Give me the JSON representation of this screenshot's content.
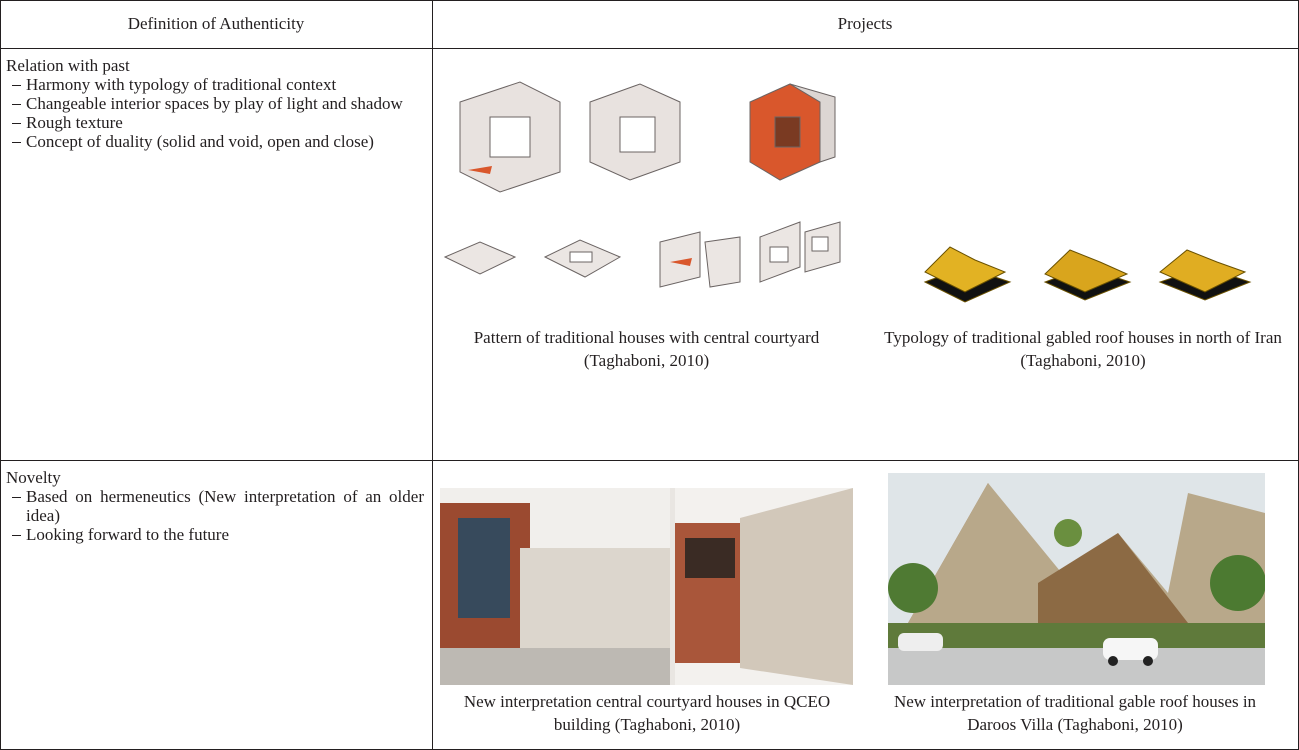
{
  "table": {
    "header": [
      "Definition of Authenticity",
      "Projects"
    ],
    "rows": [
      {
        "definition": {
          "title": "Relation with past",
          "items": [
            "Harmony with typology of traditional context",
            "Changeable interior spaces by play of light and shadow",
            "Rough texture",
            "Concept of duality (solid and void, open and close)"
          ]
        },
        "projects": [
          {
            "caption": "Pattern of traditional houses with central courtyard (Taghaboni, 2010)"
          },
          {
            "caption": "Typology of traditional gabled roof houses in north of Iran (Taghaboni, 2010)"
          }
        ]
      },
      {
        "definition": {
          "title": "Novelty",
          "items": [
            "Based on hermeneutics (New interpretation of an older idea)",
            "Looking forward to the future"
          ]
        },
        "projects": [
          {
            "caption": "New interpretation central courtyard houses in QCEO building (Taghaboni, 2010)"
          },
          {
            "caption": "New interpretation of traditional gable roof houses in Daroos Villa (Taghaboni, 2010)"
          }
        ]
      }
    ]
  }
}
